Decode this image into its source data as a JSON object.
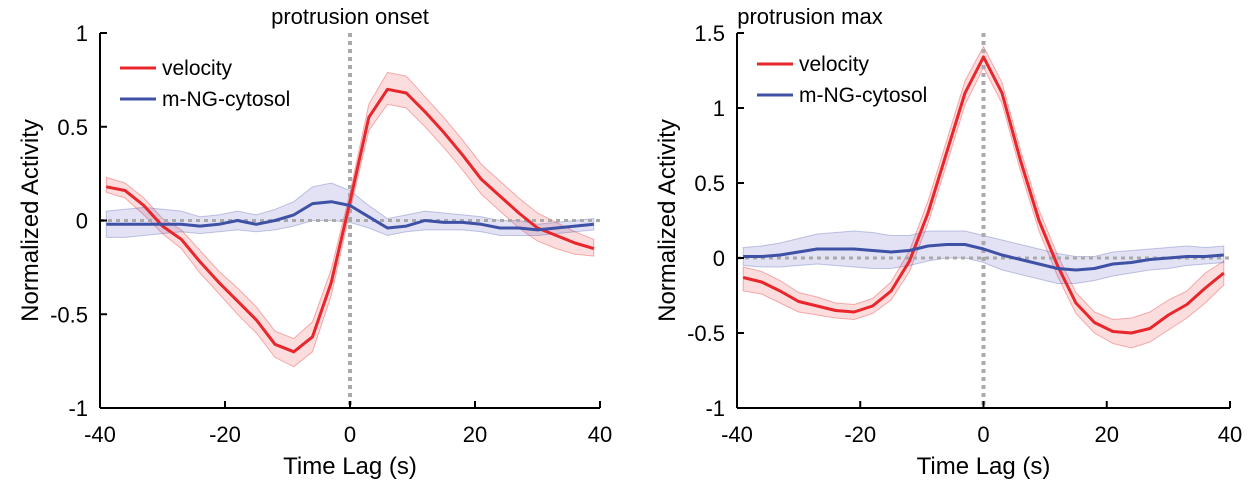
{
  "chart_data": [
    {
      "type": "line",
      "title": "protrusion onset",
      "xlabel": "Time Lag (s)",
      "ylabel": "Normalized Activity",
      "xlim": [
        -40,
        40
      ],
      "ylim": [
        -1,
        1
      ],
      "xticks": [
        -40,
        -20,
        0,
        20,
        40
      ],
      "yticks": [
        -1,
        -0.5,
        0,
        0.5,
        1
      ],
      "ytick_labels": [
        "-1",
        "-0.5",
        "0",
        "0.5",
        "1"
      ],
      "legend_position": "top-left",
      "reference_lines": {
        "x": 0,
        "y": 0
      },
      "series": [
        {
          "name": "velocity",
          "color": "#e8262b",
          "x": [
            -39,
            -36,
            -33,
            -30,
            -27,
            -24,
            -21,
            -18,
            -15,
            -12,
            -9,
            -6,
            -3,
            0,
            3,
            6,
            9,
            12,
            15,
            18,
            21,
            24,
            27,
            30,
            33,
            36,
            39
          ],
          "y": [
            0.18,
            0.16,
            0.08,
            -0.03,
            -0.1,
            -0.22,
            -0.33,
            -0.43,
            -0.53,
            -0.66,
            -0.7,
            -0.62,
            -0.33,
            0.1,
            0.55,
            0.7,
            0.68,
            0.58,
            0.47,
            0.35,
            0.22,
            0.13,
            0.04,
            -0.04,
            -0.08,
            -0.12,
            -0.15
          ],
          "band_low": [
            0.15,
            0.12,
            0.03,
            -0.07,
            -0.15,
            -0.28,
            -0.39,
            -0.5,
            -0.6,
            -0.73,
            -0.78,
            -0.7,
            -0.4,
            0.05,
            0.48,
            0.62,
            0.6,
            0.5,
            0.39,
            0.27,
            0.14,
            0.05,
            -0.04,
            -0.11,
            -0.15,
            -0.18,
            -0.19
          ],
          "band_high": [
            0.23,
            0.2,
            0.12,
            0.01,
            -0.05,
            -0.16,
            -0.27,
            -0.36,
            -0.46,
            -0.59,
            -0.63,
            -0.54,
            -0.26,
            0.15,
            0.62,
            0.79,
            0.77,
            0.66,
            0.55,
            0.43,
            0.3,
            0.21,
            0.12,
            0.04,
            -0.01,
            -0.06,
            -0.1
          ]
        },
        {
          "name": "m-NG-cytosol",
          "color": "#3f51a5",
          "x": [
            -39,
            -36,
            -33,
            -30,
            -27,
            -24,
            -21,
            -18,
            -15,
            -12,
            -9,
            -6,
            -3,
            0,
            3,
            6,
            9,
            12,
            15,
            18,
            21,
            24,
            27,
            30,
            33,
            36,
            39
          ],
          "y": [
            -0.02,
            -0.02,
            -0.02,
            -0.02,
            -0.02,
            -0.03,
            -0.02,
            0.0,
            -0.02,
            0.0,
            0.03,
            0.09,
            0.1,
            0.08,
            0.02,
            -0.04,
            -0.03,
            0.0,
            -0.01,
            -0.01,
            -0.02,
            -0.04,
            -0.04,
            -0.05,
            -0.04,
            -0.03,
            -0.02
          ],
          "band_low": [
            -0.09,
            -0.09,
            -0.08,
            -0.07,
            -0.06,
            -0.07,
            -0.06,
            -0.05,
            -0.06,
            -0.05,
            -0.03,
            0.0,
            0.0,
            -0.01,
            -0.04,
            -0.08,
            -0.06,
            -0.05,
            -0.05,
            -0.05,
            -0.06,
            -0.08,
            -0.08,
            -0.08,
            -0.07,
            -0.06,
            -0.05
          ],
          "band_high": [
            0.05,
            0.06,
            0.07,
            0.06,
            0.05,
            0.02,
            0.03,
            0.05,
            0.03,
            0.06,
            0.1,
            0.18,
            0.2,
            0.16,
            0.08,
            0.01,
            0.03,
            0.05,
            0.04,
            0.03,
            0.02,
            0.0,
            0.0,
            -0.02,
            -0.01,
            0.0,
            0.01
          ]
        }
      ]
    },
    {
      "type": "line",
      "title": "protrusion max",
      "xlabel": "Time Lag (s)",
      "ylabel": "Normalized Activity",
      "xlim": [
        -40,
        40
      ],
      "ylim": [
        -1,
        1.5
      ],
      "xticks": [
        -40,
        -20,
        0,
        20,
        40
      ],
      "yticks": [
        -1,
        -0.5,
        0,
        0.5,
        1,
        1.5
      ],
      "ytick_labels": [
        "-1",
        "-0.5",
        "0",
        "0.5",
        "1",
        "1.5"
      ],
      "legend_position": "top-left",
      "reference_lines": {
        "x": 0,
        "y": 0
      },
      "series": [
        {
          "name": "velocity",
          "color": "#e8262b",
          "x": [
            -39,
            -36,
            -33,
            -30,
            -27,
            -24,
            -21,
            -18,
            -15,
            -12,
            -9,
            -6,
            -3,
            0,
            3,
            6,
            9,
            12,
            15,
            18,
            21,
            24,
            27,
            30,
            33,
            36,
            39
          ],
          "y": [
            -0.13,
            -0.16,
            -0.22,
            -0.29,
            -0.32,
            -0.35,
            -0.36,
            -0.32,
            -0.22,
            -0.02,
            0.3,
            0.7,
            1.1,
            1.34,
            1.1,
            0.65,
            0.25,
            -0.05,
            -0.3,
            -0.43,
            -0.49,
            -0.5,
            -0.47,
            -0.38,
            -0.31,
            -0.2,
            -0.1
          ],
          "band_low": [
            -0.22,
            -0.24,
            -0.3,
            -0.36,
            -0.38,
            -0.4,
            -0.41,
            -0.37,
            -0.28,
            -0.09,
            0.23,
            0.62,
            1.02,
            1.27,
            1.03,
            0.58,
            0.18,
            -0.12,
            -0.37,
            -0.5,
            -0.57,
            -0.6,
            -0.56,
            -0.48,
            -0.4,
            -0.3,
            -0.18
          ],
          "band_high": [
            -0.06,
            -0.09,
            -0.15,
            -0.23,
            -0.26,
            -0.3,
            -0.31,
            -0.27,
            -0.16,
            0.05,
            0.38,
            0.78,
            1.18,
            1.41,
            1.17,
            0.72,
            0.32,
            0.02,
            -0.23,
            -0.36,
            -0.41,
            -0.4,
            -0.36,
            -0.28,
            -0.22,
            -0.1,
            -0.02
          ]
        },
        {
          "name": "m-NG-cytosol",
          "color": "#3f51a5",
          "x": [
            -39,
            -36,
            -33,
            -30,
            -27,
            -24,
            -21,
            -18,
            -15,
            -12,
            -9,
            -6,
            -3,
            0,
            3,
            6,
            9,
            12,
            15,
            18,
            21,
            24,
            27,
            30,
            33,
            36,
            39
          ],
          "y": [
            0.01,
            0.01,
            0.02,
            0.04,
            0.06,
            0.06,
            0.06,
            0.05,
            0.04,
            0.05,
            0.08,
            0.09,
            0.09,
            0.06,
            0.02,
            -0.01,
            -0.04,
            -0.07,
            -0.08,
            -0.07,
            -0.04,
            -0.03,
            -0.01,
            0.0,
            0.01,
            0.01,
            0.02
          ],
          "band_low": [
            -0.05,
            -0.06,
            -0.06,
            -0.05,
            -0.04,
            -0.05,
            -0.06,
            -0.07,
            -0.07,
            -0.05,
            -0.02,
            0.0,
            0.0,
            -0.03,
            -0.08,
            -0.11,
            -0.14,
            -0.17,
            -0.17,
            -0.15,
            -0.12,
            -0.1,
            -0.08,
            -0.07,
            -0.05,
            -0.04,
            -0.03
          ],
          "band_high": [
            0.07,
            0.08,
            0.1,
            0.13,
            0.16,
            0.17,
            0.18,
            0.17,
            0.15,
            0.15,
            0.18,
            0.18,
            0.18,
            0.15,
            0.12,
            0.09,
            0.06,
            0.03,
            0.01,
            0.01,
            0.04,
            0.05,
            0.06,
            0.07,
            0.08,
            0.07,
            0.08
          ]
        }
      ]
    }
  ]
}
